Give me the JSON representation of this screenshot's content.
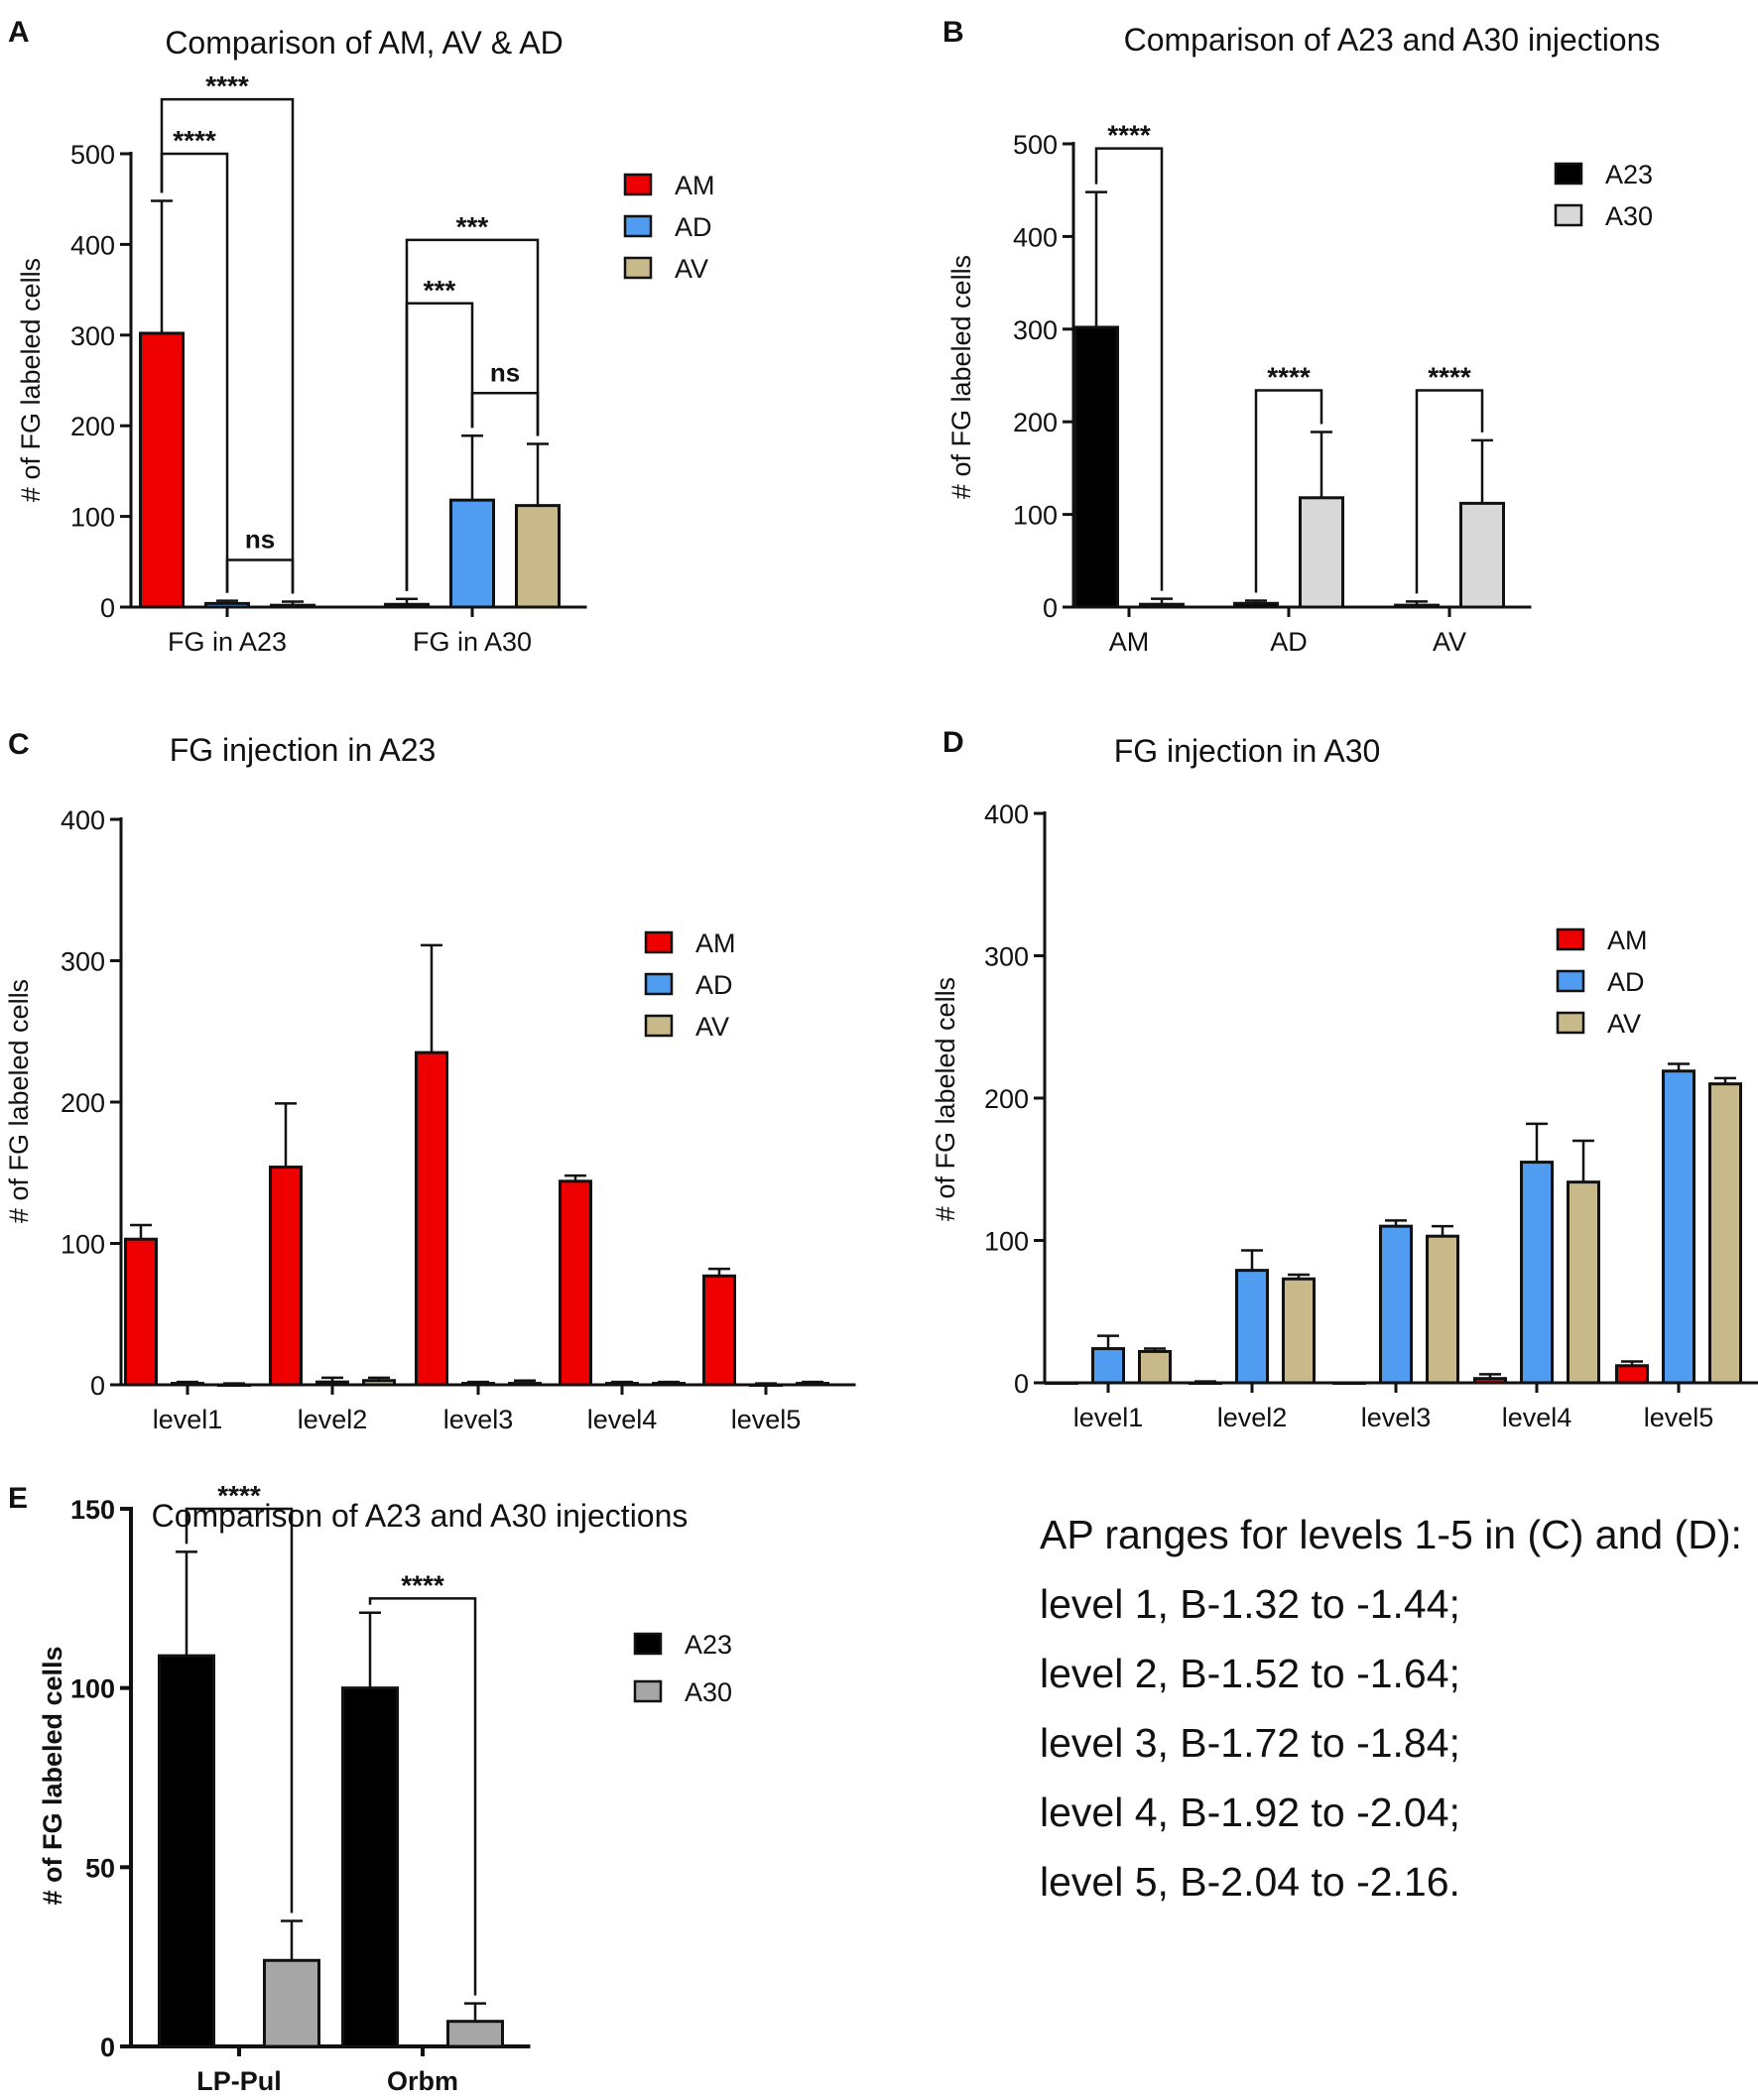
{
  "chart_data": [
    {
      "id": "A",
      "panel_label": "A",
      "type": "bar",
      "title": "Comparison of AM, AV & AD",
      "xlabel": "",
      "ylabel": "# of FG labeled cells",
      "ylim": [
        0,
        500
      ],
      "yticks": [
        "0",
        "100",
        "200",
        "300",
        "400",
        "500"
      ],
      "categories": [
        "FG in A23",
        "FG in A30"
      ],
      "series": [
        {
          "name": "AM",
          "color": "#ee0000",
          "values": [
            302,
            3
          ],
          "errors": [
            146,
            6
          ]
        },
        {
          "name": "AD",
          "color": "#4f9cf0",
          "values": [
            4,
            118
          ],
          "errors": [
            3,
            71
          ]
        },
        {
          "name": "AV",
          "color": "#c8b98a",
          "values": [
            2,
            112
          ],
          "errors": [
            4,
            68
          ]
        }
      ],
      "significance": [
        {
          "label": "****",
          "group": 0,
          "from": 0,
          "to": 1,
          "level": 500
        },
        {
          "label": "****",
          "group": 0,
          "from": 0,
          "to": 2,
          "level": 560
        },
        {
          "label": "ns",
          "group": 0,
          "from": 1,
          "to": 2,
          "level": 52
        },
        {
          "label": "***",
          "group": 1,
          "from": 0,
          "to": 1,
          "level": 335
        },
        {
          "label": "***",
          "group": 1,
          "from": 0,
          "to": 2,
          "level": 405
        },
        {
          "label": "ns",
          "group": 1,
          "from": 1,
          "to": 2,
          "level": 236
        }
      ]
    },
    {
      "id": "B",
      "panel_label": "B",
      "type": "bar",
      "title": "Comparison of A23 and A30 injections",
      "xlabel": "",
      "ylabel": "# of FG labeled cells",
      "ylim": [
        0,
        500
      ],
      "yticks": [
        "0",
        "100",
        "200",
        "300",
        "400",
        "500"
      ],
      "categories": [
        "AM",
        "AD",
        "AV"
      ],
      "series": [
        {
          "name": "A23",
          "color": "#000000",
          "values": [
            302,
            4,
            2
          ],
          "errors": [
            146,
            3,
            4
          ]
        },
        {
          "name": "A30",
          "color": "#d8d8d8",
          "values": [
            3,
            118,
            112
          ],
          "errors": [
            6,
            71,
            68
          ]
        }
      ],
      "significance": [
        {
          "label": "****",
          "group": 0,
          "from": 0,
          "to": 1,
          "level": 495
        },
        {
          "label": "****",
          "group": 1,
          "from": 0,
          "to": 1,
          "level": 234
        },
        {
          "label": "****",
          "group": 2,
          "from": 0,
          "to": 1,
          "level": 234
        }
      ]
    },
    {
      "id": "C",
      "panel_label": "C",
      "type": "bar",
      "title": "FG injection in A23",
      "xlabel": "",
      "ylabel": "# of FG labeled cells",
      "ylim": [
        0,
        400
      ],
      "yticks": [
        "0",
        "100",
        "200",
        "300",
        "400"
      ],
      "categories": [
        "level1",
        "level2",
        "level3",
        "level4",
        "level5"
      ],
      "series": [
        {
          "name": "AM",
          "color": "#ee0000",
          "values": [
            103,
            154,
            235,
            144,
            77
          ],
          "errors": [
            10,
            45,
            76,
            4,
            5
          ]
        },
        {
          "name": "AD",
          "color": "#4f9cf0",
          "values": [
            1,
            2,
            1,
            1,
            0
          ],
          "errors": [
            1,
            3,
            1,
            1,
            1
          ]
        },
        {
          "name": "AV",
          "color": "#c8b98a",
          "values": [
            0,
            3,
            1,
            1,
            1
          ],
          "errors": [
            1,
            2,
            2,
            1,
            1
          ]
        }
      ],
      "significance": []
    },
    {
      "id": "D",
      "panel_label": "D",
      "type": "bar",
      "title": "FG injection in A30",
      "xlabel": "",
      "ylabel": "# of FG labeled cells",
      "ylim": [
        0,
        400
      ],
      "yticks": [
        "0",
        "100",
        "200",
        "300",
        "400"
      ],
      "categories": [
        "level1",
        "level2",
        "level3",
        "level4",
        "level5"
      ],
      "series": [
        {
          "name": "AM",
          "color": "#ee0000",
          "values": [
            0,
            0,
            0,
            3,
            12
          ],
          "errors": [
            0,
            1,
            0,
            3,
            3
          ]
        },
        {
          "name": "AD",
          "color": "#4f9cf0",
          "values": [
            24,
            79,
            110,
            155,
            219
          ],
          "errors": [
            9,
            14,
            4,
            27,
            5
          ]
        },
        {
          "name": "AV",
          "color": "#c8b98a",
          "values": [
            22,
            73,
            103,
            141,
            210
          ],
          "errors": [
            2,
            3,
            7,
            29,
            4
          ]
        }
      ],
      "significance": []
    },
    {
      "id": "E",
      "panel_label": "E",
      "type": "bar",
      "title": "Comparison of A23 and A30 injections",
      "xlabel": "",
      "ylabel": "# of FG labeled cells",
      "ylim": [
        0,
        150
      ],
      "yticks": [
        "0",
        "50",
        "100",
        "150"
      ],
      "categories": [
        "LP-Pul",
        "Orbm"
      ],
      "series": [
        {
          "name": "A23",
          "color": "#000000",
          "values": [
            109,
            100
          ],
          "errors": [
            29,
            21
          ]
        },
        {
          "name": "A30",
          "color": "#a6a6a6",
          "values": [
            24,
            7
          ],
          "errors": [
            11,
            5
          ]
        }
      ],
      "significance": [
        {
          "label": "****",
          "group": 0,
          "from": 0,
          "to": 1,
          "level": 150
        },
        {
          "label": "****",
          "group": 1,
          "from": 0,
          "to": 1,
          "level": 125
        }
      ]
    }
  ],
  "notes": {
    "heading": "AP ranges for levels 1-5 in (C) and (D):",
    "lines": [
      "level 1, B-1.32 to -1.44;",
      "level 2, B-1.52 to -1.64;",
      "level 3, B-1.72 to -1.84;",
      "level 4, B-1.92 to -2.04;",
      "level 5, B-2.04 to -2.16."
    ]
  }
}
